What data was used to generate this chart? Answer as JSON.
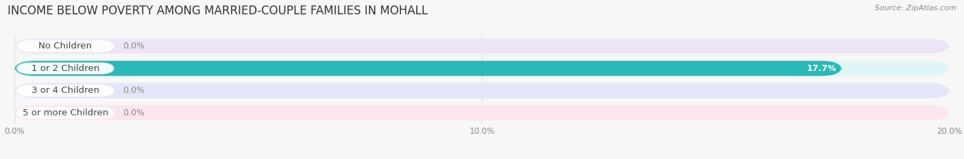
{
  "title": "INCOME BELOW POVERTY AMONG MARRIED-COUPLE FAMILIES IN MOHALL",
  "source": "Source: ZipAtlas.com",
  "categories": [
    "No Children",
    "1 or 2 Children",
    "3 or 4 Children",
    "5 or more Children"
  ],
  "values": [
    0.0,
    17.7,
    0.0,
    0.0
  ],
  "bar_colors": [
    "#c4a0d4",
    "#2ab8b8",
    "#a8b0e8",
    "#f5a0b8"
  ],
  "bg_colors": [
    "#ede5f5",
    "#e0f5f5",
    "#e4e6f8",
    "#fde5ee"
  ],
  "label_bg": "#e8e8f0",
  "xlim": [
    0,
    20.0
  ],
  "xticks": [
    0.0,
    10.0,
    20.0
  ],
  "xticklabels": [
    "0.0%",
    "10.0%",
    "20.0%"
  ],
  "title_fontsize": 12,
  "label_fontsize": 9.5,
  "value_fontsize": 9,
  "bar_height": 0.68,
  "background_color": "#f7f7f7"
}
